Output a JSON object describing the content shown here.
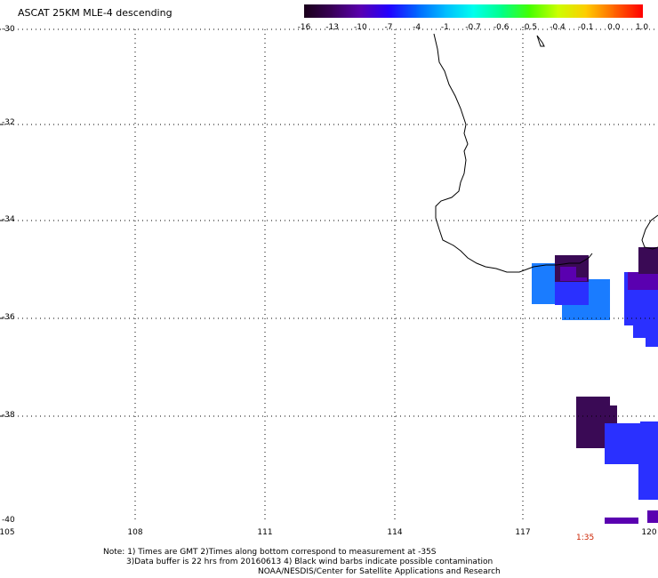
{
  "title": "ASCAT 25KM MLE-4 descending",
  "colorbar": {
    "labels": [
      "-16",
      "-13",
      "-10",
      "-7",
      "-4",
      "-1",
      "-0.7",
      "-0.6",
      "-0.5",
      "-0.4",
      "-0.1",
      "0.0",
      "1.0"
    ],
    "colors": [
      "#1a001a",
      "#3a005a",
      "#5a00b0",
      "#2200ff",
      "#0066ff",
      "#00bbff",
      "#00ffee",
      "#00ff88",
      "#44ff00",
      "#ccff00",
      "#ffcc00",
      "#ff6600",
      "#ff0000"
    ]
  },
  "map": {
    "lat_labels": [
      "-30",
      "-32",
      "-34",
      "-36",
      "-38",
      "-40"
    ],
    "lon_labels": [
      "105",
      "108",
      "111",
      "114",
      "117",
      "120"
    ],
    "time_label": "1:35",
    "cell_colors": {
      "dark": "#3a0a55",
      "purple": "#5a00b0",
      "blue": "#2a30ff",
      "lightblue": "#1a7cff"
    }
  },
  "notes": {
    "line1": "Note: 1) Times are GMT 2)Times along bottom correspond to measurement at -35S",
    "line2": "3)Data buffer is 22 hrs from 20160613 4) Black wind barbs indicate possible contamination",
    "line3": "NOAA/NESDIS/Center for Satellite Applications and Research"
  }
}
